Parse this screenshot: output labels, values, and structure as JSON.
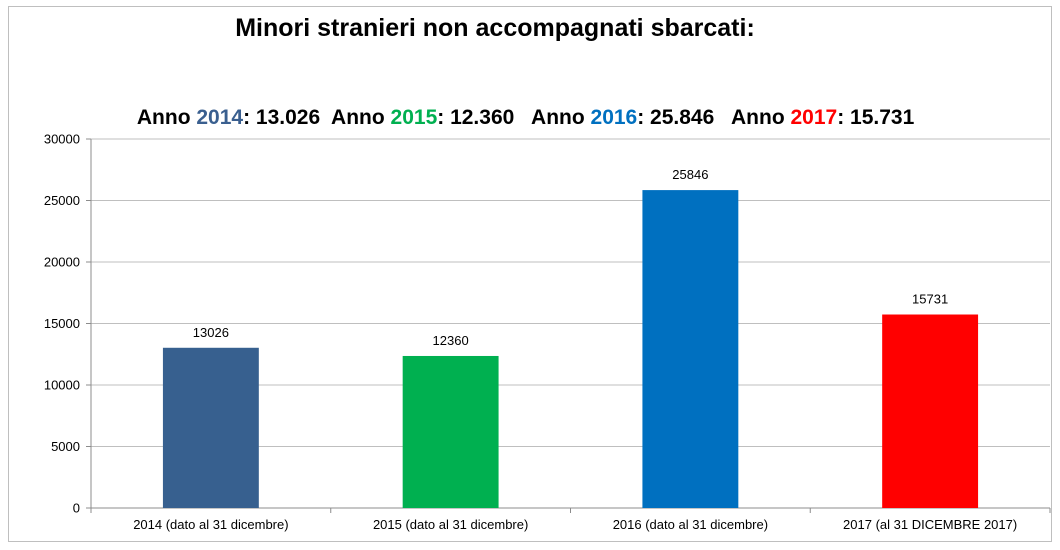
{
  "chart_data": {
    "type": "bar",
    "title": "Minori stranieri non accompagnati sbarcati:",
    "subtitle_parts": [
      {
        "text": "Anno ",
        "color": "#000000"
      },
      {
        "text": "2014",
        "color": "#3A5F8F"
      },
      {
        "text": ": 13.026  Anno ",
        "color": "#000000"
      },
      {
        "text": "2015",
        "color": "#00B050"
      },
      {
        "text": ": 12.360   Anno ",
        "color": "#000000"
      },
      {
        "text": "2016",
        "color": "#0070C0"
      },
      {
        "text": ": 25.846   Anno ",
        "color": "#000000"
      },
      {
        "text": "2017",
        "color": "#FF0000"
      },
      {
        "text": ": 15.731",
        "color": "#000000"
      }
    ],
    "categories": [
      "2014 (dato al 31 dicembre)",
      "2015 (dato al 31 dicembre)",
      "2016 (dato al 31 dicembre)",
      "2017 (al 31 DICEMBRE 2017)"
    ],
    "values": [
      13026,
      12360,
      25846,
      15731
    ],
    "data_labels": [
      "13026",
      "12360",
      "25846",
      "15731"
    ],
    "colors": [
      "#37608F",
      "#00B050",
      "#0070C0",
      "#FF0000"
    ],
    "xlabel": "",
    "ylabel": "",
    "ylim": [
      0,
      30000
    ],
    "yticks": [
      0,
      5000,
      10000,
      15000,
      20000,
      25000,
      30000
    ],
    "ytick_labels": [
      "0",
      "5000",
      "10000",
      "15000",
      "20000",
      "25000",
      "30000"
    ],
    "grid": true,
    "legend": "none"
  }
}
